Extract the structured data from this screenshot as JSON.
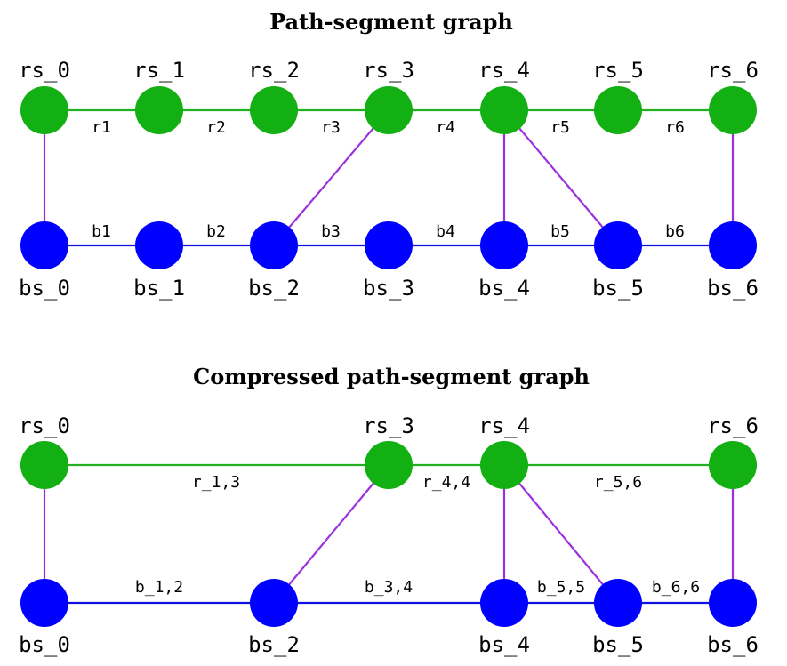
{
  "colors": {
    "red_node": "#12b012",
    "red_edge": "#22b022",
    "blue_node": "#0000ff",
    "blue_edge": "#1010e0",
    "cross_edge": "#9b30dd"
  },
  "graph1": {
    "title": "Path-segment graph",
    "red_nodes": [
      "rs_0",
      "rs_1",
      "rs_2",
      "rs_3",
      "rs_4",
      "rs_5",
      "rs_6"
    ],
    "blue_nodes": [
      "bs_0",
      "bs_1",
      "bs_2",
      "bs_3",
      "bs_4",
      "bs_5",
      "bs_6"
    ],
    "red_edges": [
      "r1",
      "r2",
      "r3",
      "r4",
      "r5",
      "r6"
    ],
    "blue_edges": [
      "b1",
      "b2",
      "b3",
      "b4",
      "b5",
      "b6"
    ]
  },
  "graph2": {
    "title": "Compressed path-segment graph",
    "red_nodes": [
      "rs_0",
      "rs_3",
      "rs_4",
      "rs_6"
    ],
    "blue_nodes": [
      "bs_0",
      "bs_2",
      "bs_4",
      "bs_5",
      "bs_6"
    ],
    "red_edges": [
      "r_1,3",
      "r_4,4",
      "r_5,6"
    ],
    "blue_edges": [
      "b_1,2",
      "b_3,4",
      "b_5,5",
      "b_6,6"
    ]
  }
}
